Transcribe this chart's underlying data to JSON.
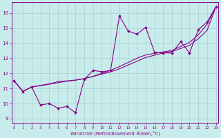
{
  "xlabel": "Windchill (Refroidissement éolien,°C)",
  "x_ticks": [
    0,
    1,
    2,
    3,
    4,
    5,
    6,
    7,
    8,
    9,
    10,
    11,
    12,
    13,
    14,
    15,
    16,
    17,
    18,
    19,
    20,
    21,
    22,
    23
  ],
  "y_ticks": [
    9,
    10,
    11,
    12,
    13,
    14,
    15,
    16
  ],
  "xlim": [
    -0.3,
    23.3
  ],
  "ylim": [
    8.7,
    16.7
  ],
  "background_color": "#c8ecec",
  "grid_color": "#b0d8d8",
  "line_color": "#880088",
  "line1_x": [
    0,
    1,
    2,
    3,
    4,
    5,
    6,
    7,
    8,
    9,
    10,
    11,
    12,
    13,
    14,
    15,
    16,
    17,
    18,
    19,
    20,
    21,
    22,
    23
  ],
  "line1_y": [
    11.5,
    10.8,
    11.1,
    9.9,
    10.0,
    9.7,
    9.8,
    9.4,
    11.6,
    12.2,
    12.1,
    12.2,
    15.8,
    14.8,
    14.6,
    15.05,
    13.4,
    13.35,
    13.35,
    14.1,
    13.35,
    14.9,
    15.4,
    16.4
  ],
  "line2_x": [
    0,
    1,
    2,
    3,
    4,
    5,
    6,
    7,
    8,
    9,
    10,
    11,
    12,
    13,
    14,
    15,
    16,
    17,
    18,
    19,
    20,
    21,
    22,
    23
  ],
  "line2_y": [
    11.5,
    10.8,
    11.1,
    11.2,
    11.3,
    11.45,
    11.5,
    11.55,
    11.65,
    11.8,
    11.95,
    12.1,
    12.3,
    12.55,
    12.8,
    13.05,
    13.2,
    13.35,
    13.45,
    13.65,
    13.85,
    14.3,
    14.85,
    16.4
  ],
  "line3_x": [
    0,
    1,
    2,
    3,
    4,
    5,
    6,
    7,
    8,
    9,
    10,
    11,
    12,
    13,
    14,
    15,
    16,
    17,
    18,
    19,
    20,
    21,
    22,
    23
  ],
  "line3_y": [
    11.5,
    10.8,
    11.1,
    11.18,
    11.28,
    11.38,
    11.48,
    11.55,
    11.65,
    11.8,
    12.0,
    12.2,
    12.45,
    12.72,
    13.0,
    13.22,
    13.32,
    13.42,
    13.52,
    13.78,
    14.05,
    14.55,
    15.25,
    16.4
  ]
}
